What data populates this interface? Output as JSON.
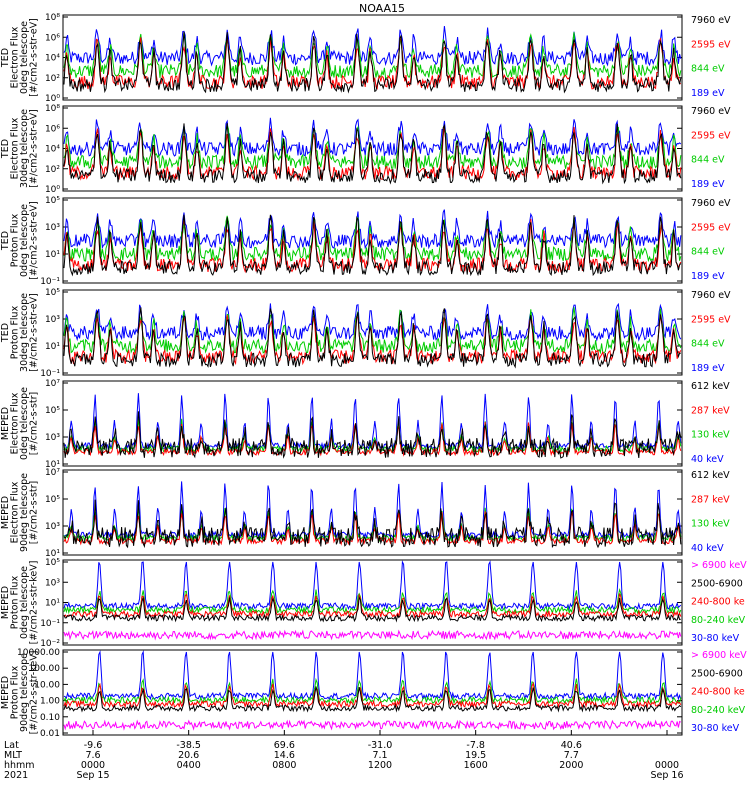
{
  "chart_data": {
    "type": "line",
    "title": "NOAA15",
    "panels": [
      {
        "ylabel": [
          "TED",
          "Electron Flux",
          "0deg telescope",
          "[#/cm2-s-str-eV]"
        ],
        "yticks": [
          "10⁰",
          "10²",
          "10⁴",
          "10⁶",
          "10⁸"
        ],
        "ylog": [
          0,
          8
        ],
        "series": [
          {
            "name": "7960 eV",
            "color": "#000000"
          },
          {
            "name": "2595 eV",
            "color": "#ff0000"
          },
          {
            "name": "844 eV",
            "color": "#00cc00"
          },
          {
            "name": "189 eV",
            "color": "#0000ff"
          }
        ]
      },
      {
        "ylabel": [
          "TED",
          "Electron Flux",
          "30deg telescope",
          "[#/cm2-s-str-eV]"
        ],
        "yticks": [
          "10⁰",
          "10²",
          "10⁴",
          "10⁶",
          "10⁸"
        ],
        "ylog": [
          0,
          8
        ],
        "series": [
          {
            "name": "7960 eV",
            "color": "#000000"
          },
          {
            "name": "2595 eV",
            "color": "#ff0000"
          },
          {
            "name": "844 eV",
            "color": "#00cc00"
          },
          {
            "name": "189 eV",
            "color": "#0000ff"
          }
        ]
      },
      {
        "ylabel": [
          "TED",
          "Proton Flux",
          "0deg telescope",
          "[#/cm2-s-str-eV]"
        ],
        "yticks": [
          "10⁻¹",
          "10¹",
          "10³",
          "10⁵"
        ],
        "ylog": [
          -1,
          5
        ],
        "series": [
          {
            "name": "7960 eV",
            "color": "#000000"
          },
          {
            "name": "2595 eV",
            "color": "#ff0000"
          },
          {
            "name": "844 eV",
            "color": "#00cc00"
          },
          {
            "name": "189 eV",
            "color": "#0000ff"
          }
        ]
      },
      {
        "ylabel": [
          "TED",
          "Proton Flux",
          "30deg telescope",
          "[#/cm2-s-str-eV]"
        ],
        "yticks": [
          "10⁻¹",
          "10¹",
          "10³",
          "10⁵"
        ],
        "ylog": [
          -1,
          5
        ],
        "series": [
          {
            "name": "7960 eV",
            "color": "#000000"
          },
          {
            "name": "2595 eV",
            "color": "#ff0000"
          },
          {
            "name": "844 eV",
            "color": "#00cc00"
          },
          {
            "name": "189 eV",
            "color": "#0000ff"
          }
        ]
      },
      {
        "ylabel": [
          "MEPED",
          "Electron Flux",
          "0deg telescope",
          "[#/cm2-s-str]"
        ],
        "yticks": [
          "10¹",
          "10³",
          "10⁵",
          "10⁷"
        ],
        "ylog": [
          1,
          7
        ],
        "series": [
          {
            "name": "612 keV",
            "color": "#000000"
          },
          {
            "name": "287 keV",
            "color": "#ff0000"
          },
          {
            "name": "130 keV",
            "color": "#00cc00"
          },
          {
            "name": "40 keV",
            "color": "#0000ff"
          }
        ]
      },
      {
        "ylabel": [
          "MEPED",
          "Electron Flux",
          "90deg telescope",
          "[#/cm2-s-str]"
        ],
        "yticks": [
          "10¹",
          "10³",
          "10⁵",
          "10⁷"
        ],
        "ylog": [
          1,
          7
        ],
        "series": [
          {
            "name": "612 keV",
            "color": "#000000"
          },
          {
            "name": "287 keV",
            "color": "#ff0000"
          },
          {
            "name": "130 keV",
            "color": "#00cc00"
          },
          {
            "name": "40 keV",
            "color": "#0000ff"
          }
        ]
      },
      {
        "ylabel": [
          "MEPED",
          "Proton Flux",
          "0deg telescope",
          "[#/cm2-s-str-keV]"
        ],
        "yticks": [
          "10⁻²",
          "10⁻¹",
          "10¹",
          "10³",
          "10⁵"
        ],
        "ylog": [
          -2,
          5
        ],
        "series": [
          {
            "name": "> 6900 keV",
            "color": "#ff00ff"
          },
          {
            "name": "2500-6900",
            "color": "#000000"
          },
          {
            "name": "240-800 ke",
            "color": "#ff0000"
          },
          {
            "name": "80-240 keV",
            "color": "#00cc00"
          },
          {
            "name": "30-80 keV",
            "color": "#0000ff"
          }
        ]
      },
      {
        "ylabel": [
          "MEPED",
          "Proton Flux",
          "90deg telescope",
          "[#/cm2-s-str-keV]"
        ],
        "yticks": [
          "0.01",
          "0.10",
          "1.00",
          "10.00",
          "100.00",
          "10000.00"
        ],
        "ylog": [
          -2,
          4
        ],
        "series": [
          {
            "name": "> 6900 keV",
            "color": "#ff00ff"
          },
          {
            "name": "2500-6900",
            "color": "#000000"
          },
          {
            "name": "240-800 ke",
            "color": "#ff0000"
          },
          {
            "name": "80-240 keV",
            "color": "#00cc00"
          },
          {
            "name": "30-80 keV",
            "color": "#0000ff"
          }
        ]
      }
    ],
    "xaxis": {
      "row_labels": [
        "Lat",
        "MLT",
        "hhmm",
        "2021"
      ],
      "ticks": [
        {
          "lat": "-9.6",
          "mlt": "7.6",
          "hhmm": "0000",
          "date": "Sep 15"
        },
        {
          "lat": "-38.5",
          "mlt": "20.6",
          "hhmm": "0400",
          "date": ""
        },
        {
          "lat": "69.6",
          "mlt": "14.6",
          "hhmm": "0800",
          "date": ""
        },
        {
          "lat": "-31.0",
          "mlt": "7.1",
          "hhmm": "1200",
          "date": ""
        },
        {
          "lat": "-7.8",
          "mlt": "19.5",
          "hhmm": "1600",
          "date": ""
        },
        {
          "lat": "40.6",
          "mlt": "7.7",
          "hhmm": "2000",
          "date": ""
        },
        {
          "lat": "",
          "mlt": "",
          "hhmm": "0000",
          "date": "Sep 16"
        }
      ]
    }
  }
}
